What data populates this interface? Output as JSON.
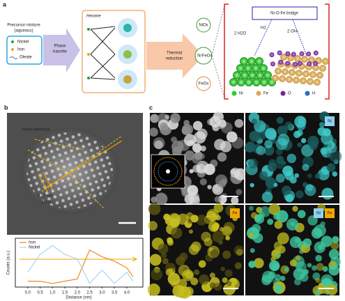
{
  "panel_a": {
    "label": "a",
    "precursor_title": "Precursor mixture",
    "precursor_subtitle": "(aqueous)",
    "precursor_legend": [
      "Nickel",
      "Iron",
      "Oleate"
    ],
    "phase_transfer": [
      "Phase",
      "transfer"
    ],
    "solvent": "Hexane",
    "thermal_reduction": [
      "Thermal",
      "reduction"
    ],
    "products": [
      "NiOx",
      "Ni",
      "FeOx",
      "FeOx"
    ],
    "bridge": "Ni-O-Fe bridge",
    "species": [
      "2 H2O",
      "H2",
      "2 OH-"
    ],
    "legend": [
      "Ni",
      "Fe",
      "O",
      "H"
    ]
  },
  "panel_b": {
    "label": "b",
    "annotations": [
      "Nano-interface",
      "0.21 nm",
      "(111)"
    ]
  },
  "chart_data": {
    "type": "line",
    "xlabel": "Distance (nm)",
    "ylabel": "Counts (a.u.)",
    "x": [
      0,
      0.5,
      1,
      1.5,
      2,
      2.5,
      3,
      3.5,
      4,
      4.25
    ],
    "series": [
      {
        "name": "Iron",
        "color": "#ef8a1c",
        "values": [
          0.1,
          0.1,
          0.05,
          0.1,
          0.15,
          0.8,
          0.65,
          0.55,
          0.4,
          0.2
        ]
      },
      {
        "name": "Nickel",
        "color": "#a6d6ee",
        "values": [
          0.3,
          0.7,
          0.9,
          0.7,
          0.6,
          0.05,
          0.35,
          0.05,
          0.3,
          0.1
        ]
      }
    ],
    "xlim": [
      -0.5,
      4.65
    ],
    "ylim": [
      0,
      1
    ],
    "xticks": [
      {
        "value": 0,
        "label": "0.0"
      },
      0.5,
      {
        "value": 1,
        "label": "1.0"
      },
      1.5,
      {
        "value": 2,
        "label": "2.0"
      },
      2.5,
      {
        "value": 3,
        "label": "3.0"
      },
      3.5,
      {
        "value": 4,
        "label": "4.0"
      }
    ],
    "legend": "top-left"
  },
  "panel_c": {
    "label": "c",
    "saed": [
      "(111)",
      "(311)"
    ],
    "maps": [
      "Ni",
      "Fe",
      "Ni",
      "Fe"
    ]
  }
}
